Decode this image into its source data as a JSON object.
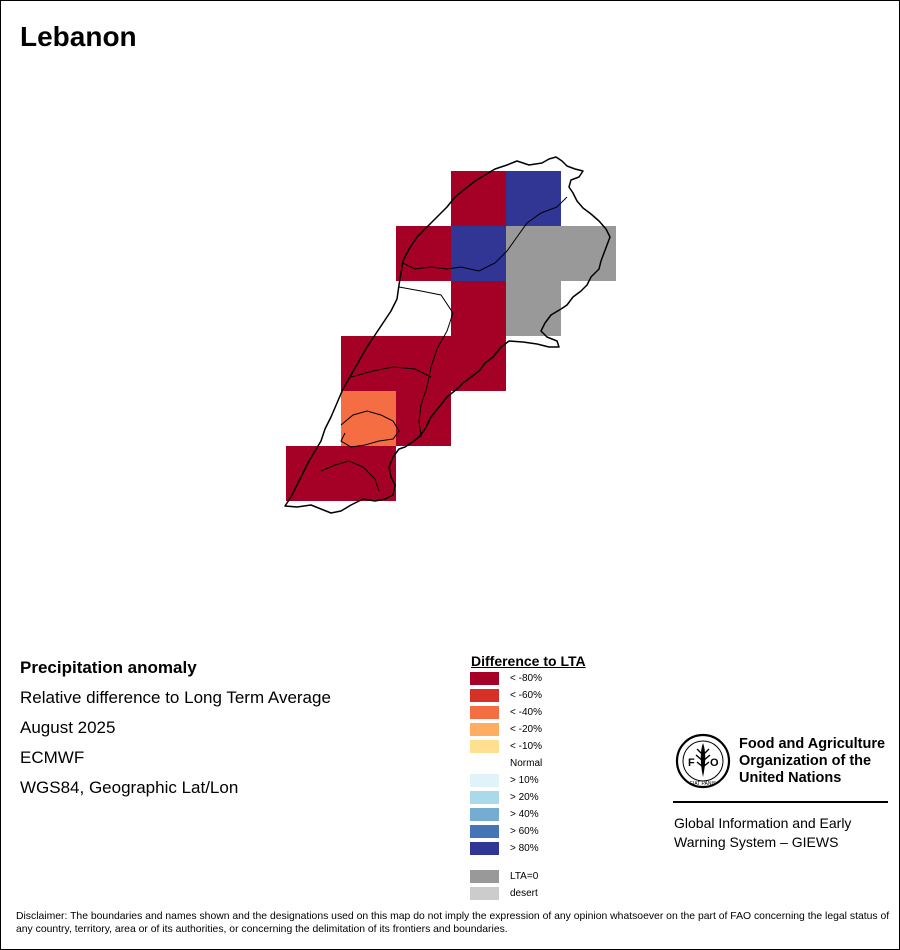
{
  "title": "Lebanon",
  "info": {
    "heading": "Precipitation anomaly",
    "line1": "Relative difference to Long Term Average",
    "period": "August 2025",
    "source": "ECMWF",
    "projection": "WGS84, Geographic Lat/Lon"
  },
  "legend": {
    "title": "Difference to LTA",
    "items": [
      {
        "label": "< -80%",
        "color": "#A50026"
      },
      {
        "label": "< -60%",
        "color": "#D73027"
      },
      {
        "label": "< -40%",
        "color": "#F46D43"
      },
      {
        "label": "< -20%",
        "color": "#FDAE61"
      },
      {
        "label": "< -10%",
        "color": "#FEE090"
      },
      {
        "label": "Normal",
        "color": "#FFFFFF"
      },
      {
        "label": "> 10%",
        "color": "#E0F3F8"
      },
      {
        "label": "> 20%",
        "color": "#ABD9E9"
      },
      {
        "label": "> 40%",
        "color": "#74ADD1"
      },
      {
        "label": "> 60%",
        "color": "#4575B4"
      },
      {
        "label": "> 80%",
        "color": "#313695"
      },
      {
        "label": "LTA=0",
        "color": "#999999"
      },
      {
        "label": "desert",
        "color": "#CCCCCC"
      }
    ]
  },
  "grid_cells": [
    {
      "col": 3,
      "row": 0,
      "class": "< -80%"
    },
    {
      "col": 4,
      "row": 0,
      "class": "> 80%"
    },
    {
      "col": 2,
      "row": 1,
      "class": "< -80%"
    },
    {
      "col": 3,
      "row": 1,
      "class": "> 80%"
    },
    {
      "col": 4,
      "row": 1,
      "class": "LTA=0"
    },
    {
      "col": 5,
      "row": 1,
      "class": "LTA=0"
    },
    {
      "col": 3,
      "row": 2,
      "class": "< -80%"
    },
    {
      "col": 4,
      "row": 2,
      "class": "LTA=0"
    },
    {
      "col": 1,
      "row": 3,
      "class": "< -80%"
    },
    {
      "col": 2,
      "row": 3,
      "class": "< -80%"
    },
    {
      "col": 3,
      "row": 3,
      "class": "< -80%"
    },
    {
      "col": 1,
      "row": 4,
      "class": "< -40%"
    },
    {
      "col": 2,
      "row": 4,
      "class": "< -80%"
    },
    {
      "col": 0,
      "row": 5,
      "class": "< -80%"
    },
    {
      "col": 1,
      "row": 5,
      "class": "< -80%"
    }
  ],
  "organization": {
    "line1": "Food and Agriculture",
    "line2": "Organization of the",
    "line3": "United Nations",
    "logo_text": "FAO",
    "motto": "FIAT PANIS",
    "giews1": "Global Information and Early",
    "giews2": "Warning System – GIEWS"
  },
  "disclaimer": "Disclaimer: The boundaries and names shown and the designations used on this map do not imply the expression of any opinion whatsoever on the part of FAO concerning the legal status of any country, territory, area or of its authorities, or concerning the delimitation of its frontiers and boundaries."
}
